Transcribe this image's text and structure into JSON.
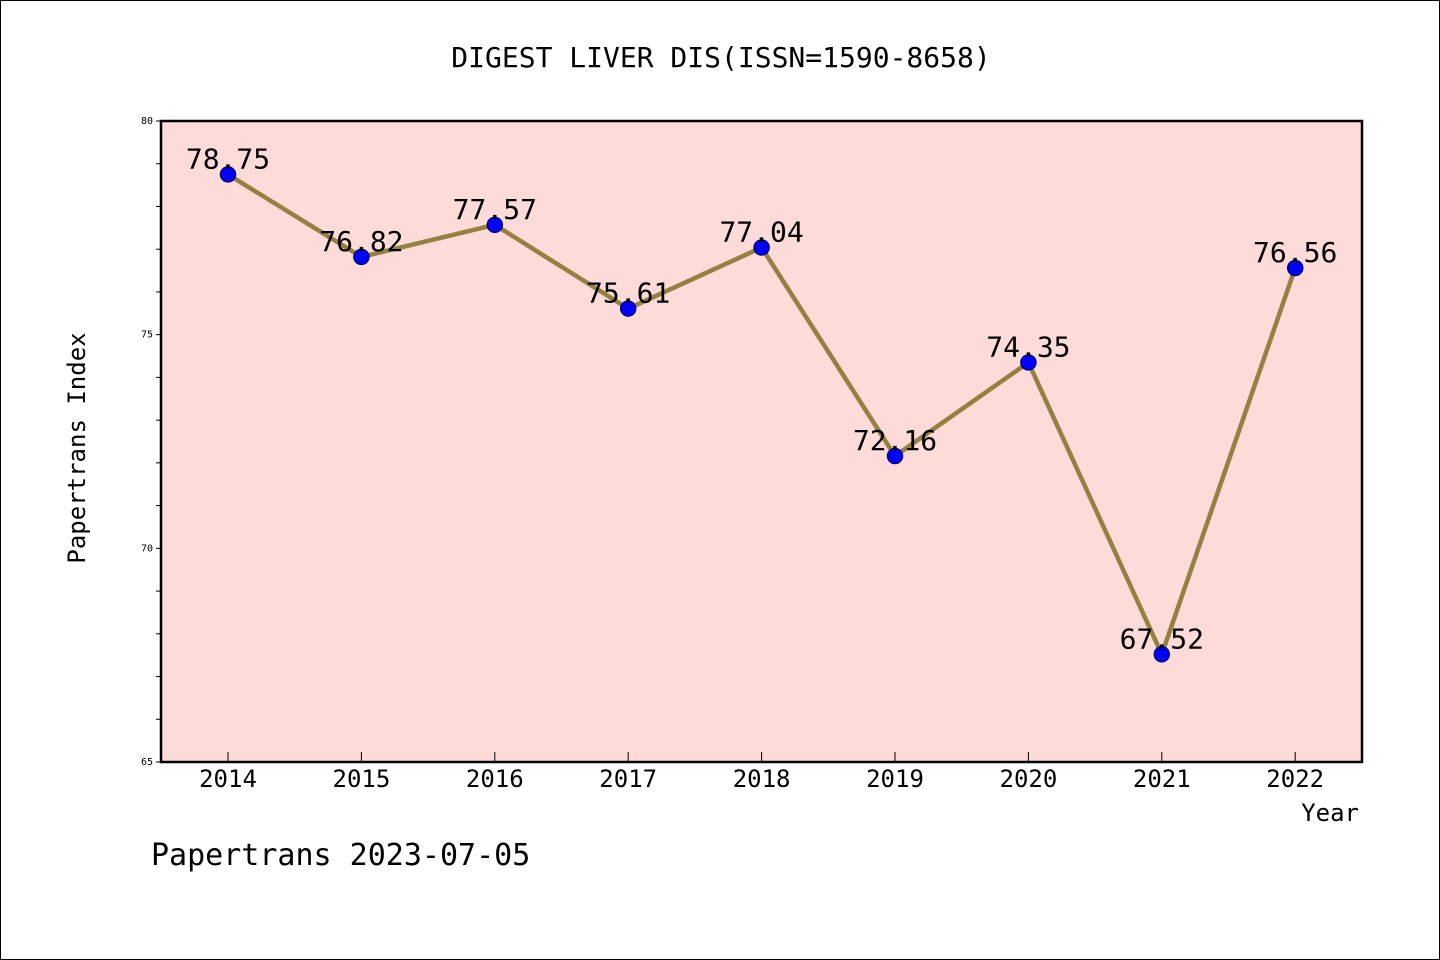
{
  "chart_data": {
    "type": "line",
    "title": "DIGEST LIVER DIS(ISSN=1590-8658)",
    "xlabel": "Year",
    "ylabel": "Papertrans Index",
    "x": [
      "2014",
      "2015",
      "2016",
      "2017",
      "2018",
      "2019",
      "2020",
      "2021",
      "2022"
    ],
    "series": [
      {
        "values": [
          78.75,
          76.82,
          77.57,
          75.61,
          77.04,
          72.16,
          74.35,
          67.52,
          76.56
        ]
      }
    ],
    "data_labels": [
      "78.75",
      "76.82",
      "77.57",
      "75.61",
      "77.04",
      "72.16",
      "74.35",
      "67.52",
      "76.56"
    ],
    "ylim": [
      65,
      80
    ],
    "yticks": [
      65,
      70,
      75,
      80
    ],
    "yticks_minor_step": 1,
    "grid": false,
    "legend": "none"
  },
  "footer": {
    "text": "Papertrans 2023-07-05"
  },
  "colors": {
    "plot_background": "#fddbd8",
    "line": "#948040",
    "marker_fill": "#0000ff",
    "marker_stroke": "#000080",
    "axis": "#000000",
    "text": "#000000"
  }
}
